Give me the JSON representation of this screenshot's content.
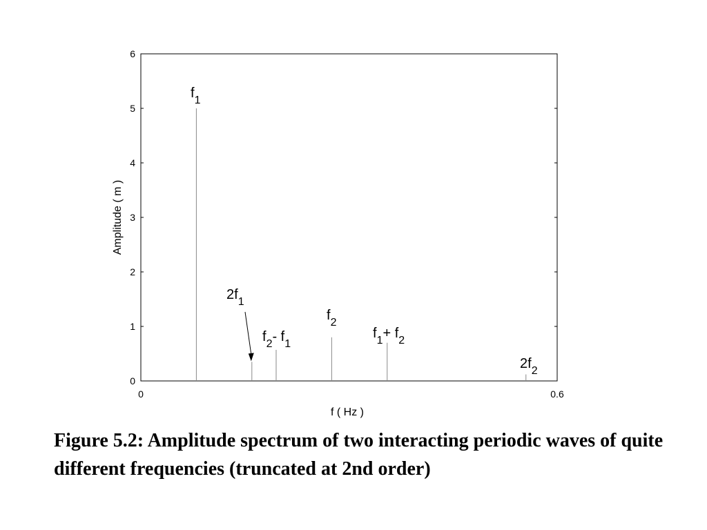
{
  "chart_data": {
    "type": "bar",
    "xlabel": "f ( Hz )",
    "ylabel": "Amplitude ( m )",
    "xlim": [
      0,
      0.6
    ],
    "ylim": [
      0,
      6
    ],
    "x_ticks": [
      "0",
      "0.6"
    ],
    "y_ticks": [
      "0",
      "1",
      "2",
      "3",
      "4",
      "5",
      "6"
    ],
    "grid": false,
    "peaks": [
      {
        "x": 0.08,
        "y": 5.0,
        "label": "f",
        "prefix": "",
        "sub1": "1",
        "mid": "",
        "sub2": ""
      },
      {
        "x": 0.16,
        "y": 0.35,
        "label": "f",
        "prefix": "2",
        "sub1": "1",
        "mid": "",
        "sub2": ""
      },
      {
        "x": 0.195,
        "y": 0.57,
        "label": "f",
        "prefix": "",
        "sub1": "2",
        "mid": "- f",
        "sub2": "1"
      },
      {
        "x": 0.275,
        "y": 0.8,
        "label": "f",
        "prefix": "",
        "sub1": "2",
        "mid": "",
        "sub2": ""
      },
      {
        "x": 0.355,
        "y": 0.7,
        "label": "f",
        "prefix": "",
        "sub1": "1",
        "mid": "+ f",
        "sub2": "2"
      },
      {
        "x": 0.555,
        "y": 0.12,
        "label": "f",
        "prefix": "2",
        "sub1": "2",
        "mid": "",
        "sub2": ""
      }
    ]
  },
  "caption": "Figure 5.2: Amplitude spectrum of two interacting periodic waves of quite different frequencies (truncated at 2nd order)"
}
